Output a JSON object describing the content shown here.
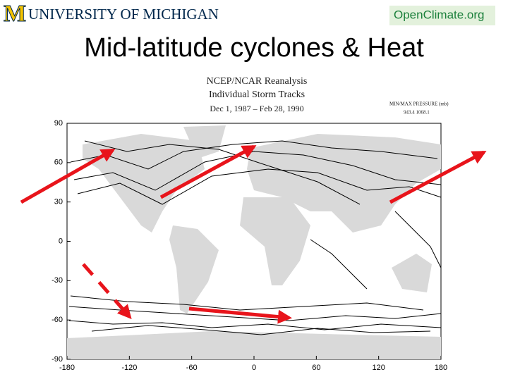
{
  "header": {
    "university": "UNIVERSITY OF MICHIGAN",
    "logo_letter": "M",
    "partner": "OpenClimate.org"
  },
  "title": "Mid-latitude cyclones & Heat",
  "figure": {
    "title_lines": [
      "NCEP/NCAR Reanalysis",
      "Individual Storm Tracks",
      "Dec  1, 1987 – Feb 28, 1990"
    ],
    "legend_title": "MIN/MAX PRESSURE (mb)",
    "legend_values": "943.4    1068.1",
    "lat_ticks": [
      90,
      60,
      30,
      0,
      -30,
      -60,
      -90
    ],
    "lon_ticks": [
      -180,
      -120,
      -60,
      0,
      60,
      120,
      180
    ]
  }
}
